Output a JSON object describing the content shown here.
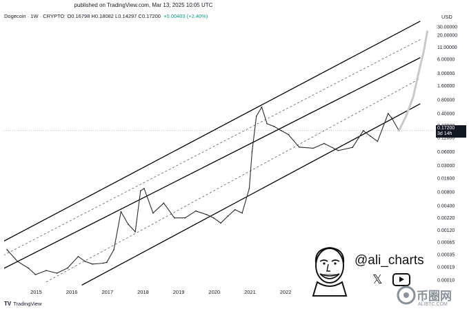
{
  "header": {
    "published": "published on TradingView.com, Mar 13, 2025 10:05 UTC",
    "symbol": "Dogecoin · 1W · CRYPTO",
    "ohlc": "O0.16798  H0.18082  L0.14297  C0.17200",
    "change": "+0.00403 (+2.40%)"
  },
  "axis_currency": "USD",
  "price_tag": {
    "price": "0.17200",
    "countdown": "3d 14h"
  },
  "footer": {
    "brand": "TradingView"
  },
  "overlay": {
    "handle": "@ali_charts",
    "icons": [
      "x-logo-icon",
      "youtube-icon",
      "cartoon-face-avatar"
    ]
  },
  "watermark": {
    "text": "币圈网",
    "sub": "ALIBTC.COM"
  },
  "colors": {
    "candles": "#2a2a2a",
    "channel": "#000000",
    "projection": "#c8c8c8",
    "tag_bg": "#131722"
  },
  "chart_data": {
    "type": "line",
    "title": "",
    "scale": "log",
    "y_ticks": [
      "30.00000",
      "20.00000",
      "11.00000",
      "6.00000",
      "3.00000",
      "1.60000",
      "0.80000",
      "0.40000",
      "0.22000",
      "0.12000",
      "0.06000",
      "0.03000",
      "0.01600",
      "0.00800",
      "0.00400",
      "0.00220",
      "0.00120",
      "0.00065",
      "0.00035",
      "0.00019",
      "0.00010"
    ],
    "x_ticks": [
      "2015",
      "2016",
      "2017",
      "2018",
      "2019",
      "2020",
      "2021",
      "2022"
    ],
    "series": [
      {
        "x": [
          2014.2,
          2014.5,
          2014.8,
          2015.0,
          2015.3,
          2015.6,
          2015.9,
          2016.2,
          2016.4,
          2016.6,
          2016.9,
          2017.0,
          2017.2,
          2017.4,
          2017.6,
          2017.8,
          2017.95,
          2018.05,
          2018.3,
          2018.6,
          2018.9,
          2019.2,
          2019.5,
          2019.8,
          2020.0,
          2020.2,
          2020.4,
          2020.6,
          2020.8,
          2021.0,
          2021.08,
          2021.2,
          2021.35,
          2021.5,
          2021.7,
          2021.9,
          2022.1,
          2022.4,
          2022.8,
          2023.1,
          2023.5,
          2023.9,
          2024.2,
          2024.4,
          2024.6,
          2024.9,
          2025.0,
          2025.2
        ],
        "y": [
          0.00045,
          0.00025,
          0.00018,
          0.00013,
          0.00016,
          0.00014,
          0.00018,
          0.00032,
          0.00025,
          0.00022,
          0.00023,
          0.00024,
          0.00045,
          0.003,
          0.0016,
          0.0011,
          0.0085,
          0.0095,
          0.0028,
          0.0046,
          0.0022,
          0.0022,
          0.0031,
          0.0026,
          0.0022,
          0.0017,
          0.0024,
          0.0033,
          0.0028,
          0.0095,
          0.06,
          0.35,
          0.55,
          0.24,
          0.21,
          0.17,
          0.14,
          0.075,
          0.071,
          0.09,
          0.063,
          0.074,
          0.17,
          0.13,
          0.1,
          0.4,
          0.32,
          0.172
        ]
      }
    ],
    "projection": {
      "x": [
        2025.2,
        2025.4,
        2025.6,
        2025.75,
        2025.9,
        2026.0
      ],
      "y": [
        0.17,
        0.35,
        0.9,
        3,
        9,
        25
      ]
    },
    "channel": {
      "lines": [
        {
          "x": [
            2014.0,
            2025.8
          ],
          "y": [
            0.00062,
            40
          ]
        },
        {
          "x": [
            2014.0,
            2025.8
          ],
          "y": [
            0.00016,
            6.5
          ]
        },
        {
          "x": [
            2016.3,
            2025.8
          ],
          "y": [
            7.7e-05,
            0.65
          ]
        }
      ],
      "dashed": [
        {
          "x": [
            2014.0,
            2025.8
          ],
          "y": [
            0.00031,
            16
          ]
        },
        {
          "x": [
            2015.3,
            2025.8
          ],
          "y": [
            9e-05,
            2.3
          ]
        }
      ]
    }
  }
}
